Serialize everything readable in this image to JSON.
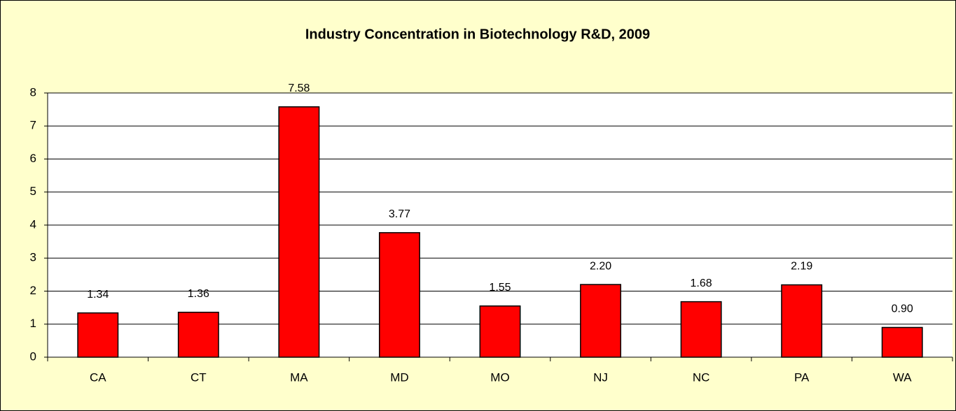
{
  "chart_data": {
    "type": "bar",
    "title": "Industry Concentration in Biotechnology R&D, 2009",
    "categories": [
      "CA",
      "CT",
      "MA",
      "MD",
      "MO",
      "NJ",
      "NC",
      "PA",
      "WA"
    ],
    "values": [
      1.34,
      1.36,
      7.58,
      3.77,
      1.55,
      2.2,
      1.68,
      2.19,
      0.9
    ],
    "value_labels": [
      "1.34",
      "1.36",
      "7.58",
      "3.77",
      "1.55",
      "2.20",
      "1.68",
      "2.19",
      "0.90"
    ],
    "color": "#ff0000",
    "ylim": [
      0,
      8
    ],
    "yticks": [
      0,
      1,
      2,
      3,
      4,
      5,
      6,
      7,
      8
    ],
    "grid": true
  }
}
